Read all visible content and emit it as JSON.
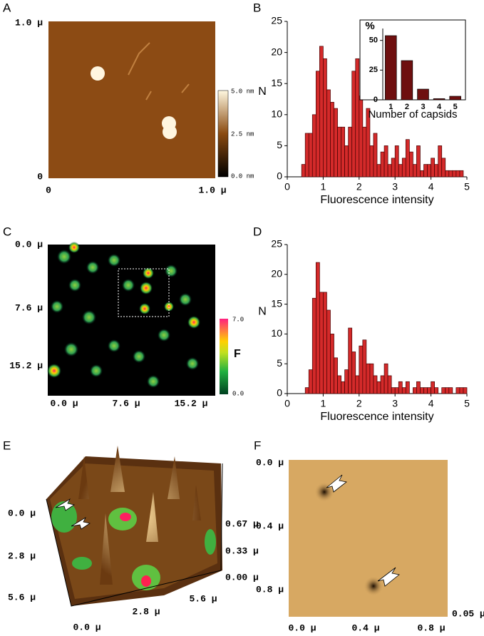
{
  "panels": {
    "A": {
      "label": "A",
      "y_labels": [
        "1.0 μ",
        "0"
      ],
      "x_labels": [
        "0",
        "1.0 μ"
      ],
      "colorbar": [
        "5.0 nm",
        "2.5 nm",
        "0.0 nm"
      ]
    },
    "C": {
      "label": "C",
      "y_labels": [
        "0.0 μ",
        "7.6 μ",
        "15.2 μ"
      ],
      "x_labels": [
        "0.0 μ",
        "7.6 μ",
        "15.2 μ"
      ],
      "colorbar": [
        "7.0",
        "F",
        "0.0"
      ]
    },
    "E": {
      "label": "E",
      "y_labels": [
        "0.0 μ",
        "2.8 μ",
        "5.6 μ"
      ],
      "z_labels": [
        "0.67 μ",
        "0.33 μ",
        "0.00 μ"
      ],
      "x_labels": [
        "0.0 μ",
        "2.8 μ",
        "5.6 μ"
      ]
    },
    "F": {
      "label": "F",
      "y_labels": [
        "0.0 μ",
        "0.4 μ",
        "0.8 μ"
      ],
      "x_labels": [
        "0.0 μ",
        "0.4 μ",
        "0.8 μ"
      ],
      "z_label": "0.05 μ"
    }
  },
  "chart_data": [
    {
      "type": "histogram",
      "panel_label": "B",
      "x_label": "Fluorescence intensity",
      "y_label": "N",
      "color": "#d42a2a",
      "bins": [
        0.4,
        0.5,
        0.6,
        0.7,
        0.8,
        0.9,
        1.0,
        1.1,
        1.2,
        1.3,
        1.4,
        1.5,
        1.6,
        1.7,
        1.8,
        1.9,
        2.0,
        2.1,
        2.2,
        2.3,
        2.4,
        2.5,
        2.6,
        2.7,
        2.8,
        2.9,
        3.0,
        3.1,
        3.2,
        3.3,
        3.4,
        3.5,
        3.6,
        3.7,
        3.8,
        3.9,
        4.0,
        4.1,
        4.2,
        4.3,
        4.4,
        4.5,
        4.6,
        4.7,
        4.8,
        4.9
      ],
      "values": [
        2,
        7,
        7,
        10,
        17,
        21,
        19,
        14,
        12,
        11,
        8,
        8,
        5,
        8,
        17,
        19,
        13,
        8,
        11,
        5,
        7,
        2,
        4,
        5,
        2,
        3,
        5,
        2,
        3,
        6,
        4,
        2,
        5,
        1,
        2,
        2,
        3,
        2,
        5,
        3,
        1,
        1,
        1,
        1,
        1
      ],
      "xlim": [
        0,
        5
      ],
      "xticks": [
        0,
        1,
        2,
        3,
        4,
        5
      ],
      "ylim": [
        0,
        25
      ],
      "yticks": [
        0,
        5,
        10,
        15,
        20,
        25
      ]
    },
    {
      "type": "bar",
      "x_label": "Number of capsids",
      "y_label": "%",
      "color": "#6e0f0f",
      "categories": [
        "1",
        "2",
        "3",
        "4",
        "5"
      ],
      "values": [
        54,
        33,
        9,
        1,
        3
      ],
      "ylim": [
        0,
        60
      ],
      "yticks": [
        0,
        25,
        50
      ]
    },
    {
      "type": "histogram",
      "panel_label": "D",
      "x_label": "Fluorescence intensity",
      "y_label": "N",
      "color": "#d42a2a",
      "bins": [
        0.5,
        0.6,
        0.7,
        0.8,
        0.9,
        1.0,
        1.1,
        1.2,
        1.3,
        1.4,
        1.5,
        1.6,
        1.7,
        1.8,
        1.9,
        2.0,
        2.1,
        2.2,
        2.3,
        2.4,
        2.5,
        2.6,
        2.7,
        2.8,
        2.9,
        3.0,
        3.1,
        3.2,
        3.3,
        3.4,
        3.5,
        3.6,
        3.7,
        3.8,
        3.9,
        4.0,
        4.1,
        4.2,
        4.3,
        4.4,
        4.5,
        4.6,
        4.7,
        4.8,
        4.9,
        5.0
      ],
      "values": [
        1,
        4,
        16,
        22,
        17,
        17,
        14,
        10,
        6,
        3,
        2,
        4,
        11,
        7,
        3,
        8,
        9,
        5,
        5,
        3,
        2,
        3,
        5,
        3,
        1,
        1,
        2,
        1,
        2,
        0,
        1,
        2,
        1,
        1,
        1,
        2,
        1,
        0,
        1,
        1,
        1,
        0,
        1,
        1,
        1
      ],
      "xlim": [
        0,
        5
      ],
      "xticks": [
        0,
        1,
        2,
        3,
        4,
        5
      ],
      "ylim": [
        0,
        25
      ],
      "yticks": [
        0,
        5,
        10,
        15,
        20,
        25
      ]
    }
  ]
}
